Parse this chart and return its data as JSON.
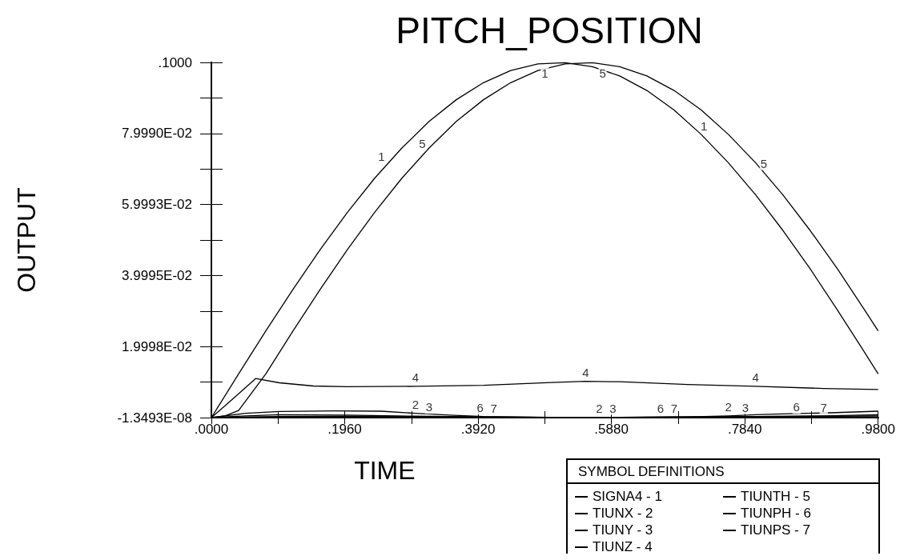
{
  "chart_data": {
    "type": "line",
    "title": "PITCH_POSITION",
    "xlabel": "TIME",
    "ylabel": "OUTPUT",
    "legend_title": "SYMBOL DEFINITIONS",
    "legend": "bottom right",
    "grid": false,
    "marker": "none",
    "line_style": "solid",
    "xlim": [
      0,
      0.98
    ],
    "xticks": [
      {
        "value": 0,
        "label": ".0000"
      },
      {
        "value": 0.098,
        "label": null
      },
      {
        "value": 0.196,
        "label": ".1960"
      },
      {
        "value": 0.294,
        "label": null
      },
      {
        "value": 0.392,
        "label": ".3920"
      },
      {
        "value": 0.49,
        "label": null
      },
      {
        "value": 0.588,
        "label": ".5880"
      },
      {
        "value": 0.686,
        "label": null
      },
      {
        "value": 0.784,
        "label": ".7840"
      },
      {
        "value": 0.882,
        "label": null
      },
      {
        "value": 0.98,
        "label": ".9800"
      }
    ],
    "ylim": [
      -1.3493e-08,
      0.1
    ],
    "yticks": [
      {
        "value": -1.3493e-08,
        "label": "-1.3493E-08"
      },
      {
        "value": 0.01,
        "label": null
      },
      {
        "value": 0.019998,
        "label": "1.9998E-02"
      },
      {
        "value": 0.03,
        "label": null
      },
      {
        "value": 0.039995,
        "label": "3.9995E-02"
      },
      {
        "value": 0.05,
        "label": null
      },
      {
        "value": 0.059993,
        "label": "5.9993E-02"
      },
      {
        "value": 0.07,
        "label": null
      },
      {
        "value": 0.07999,
        "label": "7.9990E-02"
      },
      {
        "value": 0.09,
        "label": null
      },
      {
        "value": 0.1,
        "label": ".1000"
      }
    ],
    "series": [
      {
        "name": "SIGNA4 - 1",
        "color": "#000000",
        "x": [
          0,
          0.04,
          0.08,
          0.12,
          0.16,
          0.2,
          0.24,
          0.28,
          0.32,
          0.36,
          0.4,
          0.44,
          0.48,
          0.52,
          0.56,
          0.6,
          0.64,
          0.68,
          0.72,
          0.76,
          0.8,
          0.84,
          0.88,
          0.92,
          0.96,
          0.98
        ],
        "values": [
          0,
          0.0123,
          0.0244,
          0.0361,
          0.0473,
          0.0578,
          0.0674,
          0.0759,
          0.0834,
          0.0895,
          0.0943,
          0.0977,
          0.0996,
          0.0999,
          0.0988,
          0.0962,
          0.0921,
          0.0866,
          0.0797,
          0.0717,
          0.0627,
          0.0527,
          0.0419,
          0.0303,
          0.0184,
          0.0123
        ]
      },
      {
        "name": "TIUNX - 2",
        "color": "#000000",
        "x": [
          0,
          0.05,
          0.1,
          0.18,
          0.25,
          0.3,
          0.35,
          0.4,
          0.48,
          0.55,
          0.62,
          0.7,
          0.76,
          0.8,
          0.85,
          0.9,
          0.98
        ],
        "values": [
          0,
          0.0012,
          0.0017,
          0.0019,
          0.0018,
          0.0012,
          0.0007,
          0.0003,
          0.0001,
          0,
          0.0001,
          0.0002,
          0.0005,
          0.0008,
          0.0011,
          0.0013,
          0.0018
        ]
      },
      {
        "name": "TIUNY - 3",
        "color": "#000000",
        "x": [
          0,
          0.05,
          0.1,
          0.2,
          0.3,
          0.4,
          0.5,
          0.6,
          0.7,
          0.8,
          0.9,
          0.98
        ],
        "values": [
          0,
          0.0005,
          0.0008,
          0.0007,
          0.0004,
          0.0002,
          0.0001,
          0.0001,
          0.0002,
          0.0003,
          0.0005,
          0.0008
        ]
      },
      {
        "name": "TIUNZ - 4",
        "color": "#000000",
        "x": [
          0,
          0.03,
          0.065,
          0.1,
          0.15,
          0.2,
          0.3,
          0.4,
          0.45,
          0.5,
          0.55,
          0.6,
          0.65,
          0.7,
          0.8,
          0.9,
          0.98
        ],
        "values": [
          0,
          0.005,
          0.011,
          0.0098,
          0.0089,
          0.0087,
          0.0088,
          0.0091,
          0.0095,
          0.0099,
          0.0102,
          0.0101,
          0.0097,
          0.0093,
          0.0088,
          0.0082,
          0.0079
        ]
      },
      {
        "name": "TIUNTH - 5",
        "color": "#000000",
        "x": [
          0,
          0.02,
          0.04,
          0.08,
          0.12,
          0.16,
          0.2,
          0.24,
          0.28,
          0.32,
          0.36,
          0.4,
          0.44,
          0.48,
          0.52,
          0.56,
          0.6,
          0.64,
          0.68,
          0.72,
          0.76,
          0.8,
          0.84,
          0.88,
          0.92,
          0.96,
          0.98
        ],
        "values": [
          0,
          0.0005,
          0.002,
          0.0123,
          0.0244,
          0.0361,
          0.0473,
          0.0578,
          0.0674,
          0.0759,
          0.0834,
          0.0895,
          0.0943,
          0.0977,
          0.0996,
          0.0999,
          0.0988,
          0.0962,
          0.0921,
          0.0866,
          0.0797,
          0.0717,
          0.0627,
          0.0527,
          0.0419,
          0.0303,
          0.0244
        ]
      },
      {
        "name": "TIUNPH - 6",
        "color": "#000000",
        "x": [
          0.02,
          0.1,
          0.2,
          0.3,
          0.4,
          0.5,
          0.6,
          0.7,
          0.8,
          0.9,
          0.98
        ],
        "values": [
          0.0001,
          0.0003,
          0.0004,
          0.0003,
          0.0002,
          0.0001,
          0.0001,
          0.0002,
          0.0003,
          0.0004,
          0.0005
        ]
      },
      {
        "name": "TIUNPS - 7",
        "color": "#000000",
        "x": [
          0.04,
          0.1,
          0.2,
          0.3,
          0.4,
          0.5,
          0.6,
          0.7,
          0.8,
          0.9,
          0.98
        ],
        "values": [
          0.0001,
          0.0002,
          0.0003,
          0.0002,
          0.0001,
          0,
          0,
          0.0001,
          0.0002,
          0.0003,
          0.0002
        ]
      }
    ],
    "annotations": [
      {
        "text": "1",
        "x": 0.25,
        "y": 0.071
      },
      {
        "text": "1",
        "x": 0.49,
        "y": 0.0996
      },
      {
        "text": "1",
        "x": 0.724,
        "y": 0.0796
      },
      {
        "text": "5",
        "x": 0.31,
        "y": 0.0745
      },
      {
        "text": "5",
        "x": 0.575,
        "y": 0.0996
      },
      {
        "text": "5",
        "x": 0.812,
        "y": 0.069
      },
      {
        "text": "4",
        "x": 0.3,
        "y": 0.0088
      },
      {
        "text": "4",
        "x": 0.55,
        "y": 0.0102
      },
      {
        "text": "4",
        "x": 0.8,
        "y": 0.0088
      },
      {
        "text": "2",
        "x": 0.3,
        "y": 0.0012
      },
      {
        "text": "2",
        "x": 0.57,
        "y": 0
      },
      {
        "text": "2",
        "x": 0.76,
        "y": 0.0005
      },
      {
        "text": "3",
        "x": 0.32,
        "y": 0.0004
      },
      {
        "text": "3",
        "x": 0.59,
        "y": 0.0001
      },
      {
        "text": "3",
        "x": 0.785,
        "y": 0.0003
      },
      {
        "text": "6",
        "x": 0.395,
        "y": 0.0002
      },
      {
        "text": "6",
        "x": 0.66,
        "y": 0.0001
      },
      {
        "text": "6",
        "x": 0.86,
        "y": 0.0004
      },
      {
        "text": "7",
        "x": 0.415,
        "y": 0.0001
      },
      {
        "text": "7",
        "x": 0.68,
        "y": 0.0001
      },
      {
        "text": "7",
        "x": 0.9,
        "y": 0.0003
      }
    ]
  }
}
